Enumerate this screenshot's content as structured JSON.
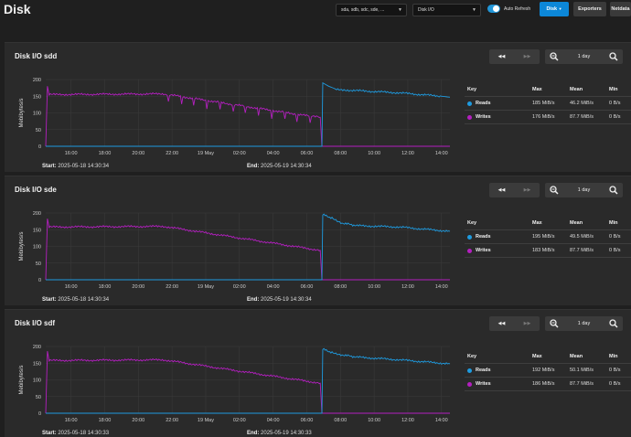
{
  "page": {
    "title": "Disk",
    "disk_select": "sda, sdb, sdc, sde, ...",
    "metric_select": "Disk I/O",
    "auto_refresh_label": "Auto Refresh",
    "auto_refresh_on": true,
    "buttons": {
      "disk": "Disk",
      "exporters": "Exporters",
      "netdata": "Netdata"
    }
  },
  "controls": {
    "rewind_icon": "rewind-icon",
    "forward_icon": "fast-forward-icon",
    "zoom_out_icon": "zoom-out-icon",
    "zoom_in_icon": "zoom-in-icon",
    "range": "1 day"
  },
  "colors": {
    "reads": "#1e9be0",
    "writes": "#b41fc0"
  },
  "legend_headers": {
    "key": "Key",
    "max": "Max",
    "mean": "Mean",
    "min": "Min"
  },
  "labels": {
    "start": "Start:",
    "end": "End:",
    "reads": "Reads",
    "writes": "Writes"
  },
  "panels": [
    {
      "title": "Disk I/O sdd",
      "start": "2025-05-18 14:30:34",
      "end": "2025-05-19 14:30:34",
      "reads": {
        "max": "185 MiB/s",
        "mean": "46.2 MiB/s",
        "min": "0 B/s"
      },
      "writes": {
        "max": "176 MiB/s",
        "mean": "87.7 MiB/s",
        "min": "0 B/s"
      },
      "spiky": true,
      "chart_data": {
        "type": "line",
        "ylabel": "Mebibytes/s",
        "ylim": [
          0,
          200
        ],
        "yticks": [
          "0",
          "50",
          "100",
          "150",
          "200"
        ],
        "xticks": [
          "16:00",
          "18:00",
          "20:00",
          "22:00",
          "19 May",
          "02:00",
          "04:00",
          "06:00",
          "08:00",
          "10:00",
          "12:00",
          "14:00"
        ],
        "series": [
          {
            "name": "Writes",
            "color": "#b41fc0",
            "points": [
              [
                0,
                0
              ],
              [
                0.1,
                180
              ],
              [
                0.2,
                155
              ],
              [
                7,
                157
              ],
              [
                15.7,
                90
              ],
              [
                16.3,
                87
              ],
              [
                16.4,
                0
              ],
              [
                24,
                0
              ]
            ]
          },
          {
            "name": "Reads",
            "color": "#1e9be0",
            "points": [
              [
                0,
                0
              ],
              [
                16.4,
                0
              ],
              [
                16.45,
                190
              ],
              [
                16.8,
                180
              ],
              [
                17.2,
                172
              ],
              [
                18,
                168
              ],
              [
                21,
                160
              ],
              [
                23.5,
                150
              ],
              [
                24,
                147
              ]
            ]
          }
        ]
      }
    },
    {
      "title": "Disk I/O sde",
      "start": "2025-05-18 14:30:34",
      "end": "2025-05-19 14:30:34",
      "reads": {
        "max": "195 MiB/s",
        "mean": "49.5 MiB/s",
        "min": "0 B/s"
      },
      "writes": {
        "max": "183 MiB/s",
        "mean": "87.7 MiB/s",
        "min": "0 B/s"
      },
      "spiky": false,
      "chart_data": {
        "type": "line",
        "ylabel": "Mebibytes/s",
        "ylim": [
          0,
          200
        ],
        "yticks": [
          "0",
          "50",
          "100",
          "150",
          "200"
        ],
        "xticks": [
          "16:00",
          "18:00",
          "20:00",
          "22:00",
          "19 May",
          "02:00",
          "04:00",
          "06:00",
          "08:00",
          "10:00",
          "12:00",
          "14:00"
        ],
        "series": [
          {
            "name": "Writes",
            "color": "#b41fc0",
            "points": [
              [
                0,
                0
              ],
              [
                0.1,
                183
              ],
              [
                0.2,
                158
              ],
              [
                7,
                160
              ],
              [
                16.3,
                88
              ],
              [
                16.4,
                0
              ],
              [
                24,
                0
              ]
            ]
          },
          {
            "name": "Reads",
            "color": "#1e9be0",
            "points": [
              [
                0,
                0
              ],
              [
                16.4,
                0
              ],
              [
                16.45,
                195
              ],
              [
                17,
                185
              ],
              [
                17.6,
                170
              ],
              [
                18.5,
                162
              ],
              [
                21,
                158
              ],
              [
                24,
                145
              ]
            ]
          }
        ]
      }
    },
    {
      "title": "Disk I/O sdf",
      "start": "2025-05-18 14:30:33",
      "end": "2025-05-19 14:30:33",
      "reads": {
        "max": "192 MiB/s",
        "mean": "50.1 MiB/s",
        "min": "0 B/s"
      },
      "writes": {
        "max": "186 MiB/s",
        "mean": "87.7 MiB/s",
        "min": "0 B/s"
      },
      "spiky": false,
      "chart_data": {
        "type": "line",
        "ylabel": "Mebibytes/s",
        "ylim": [
          0,
          200
        ],
        "yticks": [
          "0",
          "50",
          "100",
          "150",
          "200"
        ],
        "xticks": [
          "16:00",
          "18:00",
          "20:00",
          "22:00",
          "19 May",
          "02:00",
          "04:00",
          "06:00",
          "08:00",
          "10:00",
          "12:00",
          "14:00"
        ],
        "series": [
          {
            "name": "Writes",
            "color": "#b41fc0",
            "points": [
              [
                0,
                0
              ],
              [
                0.1,
                186
              ],
              [
                0.2,
                158
              ],
              [
                7,
                160
              ],
              [
                16.3,
                90
              ],
              [
                16.4,
                0
              ],
              [
                24,
                0
              ]
            ]
          },
          {
            "name": "Reads",
            "color": "#1e9be0",
            "points": [
              [
                0,
                0
              ],
              [
                16.4,
                0
              ],
              [
                16.45,
                192
              ],
              [
                17,
                182
              ],
              [
                17.6,
                175
              ],
              [
                18.5,
                168
              ],
              [
                21,
                160
              ],
              [
                24,
                148
              ]
            ]
          }
        ]
      }
    }
  ]
}
